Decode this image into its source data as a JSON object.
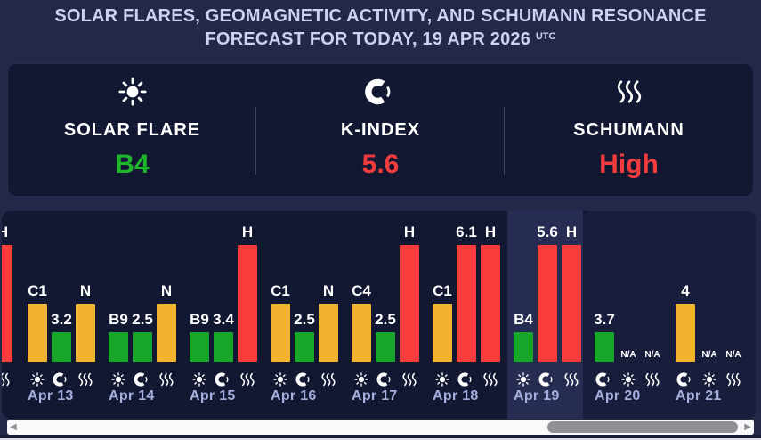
{
  "title": {
    "line1": "SOLAR FLARES, GEOMAGNETIC ACTIVITY, AND SCHUMANN RESONANCE",
    "line2": "FORECAST FOR TODAY, 19 APR 2026",
    "superscript": "UTC"
  },
  "summary": {
    "cards": [
      {
        "icon": "sun-icon",
        "label": "SOLAR FLARE",
        "value": "B4",
        "value_color": "#1fb62c"
      },
      {
        "icon": "moon-icon",
        "label": "K-INDEX",
        "value": "5.6",
        "value_color": "#f23c3c"
      },
      {
        "icon": "waves-icon",
        "label": "SCHUMANN",
        "value": "High",
        "value_color": "#f23c3c"
      }
    ]
  },
  "chart_data": {
    "type": "bar",
    "title": "Solar flares, geomagnetic activity and Schumann resonance daily forecast",
    "categories": [
      "Apr 13",
      "Apr 14",
      "Apr 15",
      "Apr 16",
      "Apr 17",
      "Apr 18",
      "Apr 19",
      "Apr 20",
      "Apr 21"
    ],
    "series": [
      {
        "name": "Solar flare",
        "values": [
          "C1",
          "B9",
          "B9",
          "C1",
          "C4",
          "C1",
          "B4",
          "N/A",
          "N/A"
        ],
        "severity": [
          "moderate",
          "low",
          "low",
          "moderate",
          "moderate",
          "moderate",
          "low",
          null,
          null
        ]
      },
      {
        "name": "K-index",
        "values": [
          3.2,
          2.5,
          3.4,
          2.5,
          2.5,
          6.1,
          5.6,
          3.7,
          4
        ],
        "severity": [
          "low",
          "low",
          "low",
          "low",
          "low",
          "high",
          "high",
          "low",
          "moderate"
        ]
      },
      {
        "name": "Schumann",
        "values": [
          "N",
          "N",
          "H",
          "N",
          "H",
          "H",
          "H",
          "N/A",
          "N/A"
        ],
        "severity": [
          "moderate",
          "moderate",
          "high",
          "moderate",
          "high",
          "high",
          "high",
          null,
          null
        ]
      }
    ],
    "today": "Apr 19",
    "grid": false,
    "legend_position": "none",
    "bar_height_encoding": {
      "low": 33,
      "moderate": 65,
      "high": 131
    },
    "colors": {
      "low": "#17a62a",
      "moderate": "#f2b42e",
      "high": "#f73c3b"
    },
    "na_label": "N/A",
    "metric_icons": {
      "solar-flare": "sun-icon",
      "k-index": "moon-icon",
      "schumann": "waves-icon"
    },
    "partial_day_left": {
      "note_visible_pixels_only": "clipped previous day at left edge",
      "bars": [
        {
          "metric": "schumann",
          "label": "H",
          "severity": "high"
        }
      ]
    },
    "days": [
      {
        "date": "Apr 13",
        "today": false,
        "bars": [
          {
            "metric": "solar-flare",
            "label": "C1",
            "severity": "moderate"
          },
          {
            "metric": "k-index",
            "label": "3.2",
            "severity": "low"
          },
          {
            "metric": "schumann",
            "label": "N",
            "severity": "moderate"
          }
        ]
      },
      {
        "date": "Apr 14",
        "today": false,
        "bars": [
          {
            "metric": "solar-flare",
            "label": "B9",
            "severity": "low"
          },
          {
            "metric": "k-index",
            "label": "2.5",
            "severity": "low"
          },
          {
            "metric": "schumann",
            "label": "N",
            "severity": "moderate"
          }
        ]
      },
      {
        "date": "Apr 15",
        "today": false,
        "bars": [
          {
            "metric": "solar-flare",
            "label": "B9",
            "severity": "low"
          },
          {
            "metric": "k-index",
            "label": "3.4",
            "severity": "low"
          },
          {
            "metric": "schumann",
            "label": "H",
            "severity": "high"
          }
        ]
      },
      {
        "date": "Apr 16",
        "today": false,
        "bars": [
          {
            "metric": "solar-flare",
            "label": "C1",
            "severity": "moderate"
          },
          {
            "metric": "k-index",
            "label": "2.5",
            "severity": "low"
          },
          {
            "metric": "schumann",
            "label": "N",
            "severity": "moderate"
          }
        ]
      },
      {
        "date": "Apr 17",
        "today": false,
        "bars": [
          {
            "metric": "solar-flare",
            "label": "C4",
            "severity": "moderate"
          },
          {
            "metric": "k-index",
            "label": "2.5",
            "severity": "low"
          },
          {
            "metric": "schumann",
            "label": "H",
            "severity": "high"
          }
        ]
      },
      {
        "date": "Apr 18",
        "today": false,
        "bars": [
          {
            "metric": "solar-flare",
            "label": "C1",
            "severity": "moderate"
          },
          {
            "metric": "k-index",
            "label": "6.1",
            "severity": "high"
          },
          {
            "metric": "schumann",
            "label": "H",
            "severity": "high"
          }
        ]
      },
      {
        "date": "Apr 19",
        "today": true,
        "bars": [
          {
            "metric": "solar-flare",
            "label": "B4",
            "severity": "low"
          },
          {
            "metric": "k-index",
            "label": "5.6",
            "severity": "high"
          },
          {
            "metric": "schumann",
            "label": "H",
            "severity": "high"
          }
        ]
      },
      {
        "date": "Apr 20",
        "today": false,
        "bars": [
          {
            "metric": "k-index",
            "label": "3.7",
            "severity": "low"
          },
          {
            "metric": "solar-flare",
            "label": "N/A",
            "severity": null
          },
          {
            "metric": "schumann",
            "label": "N/A",
            "severity": null
          }
        ]
      },
      {
        "date": "Apr 21",
        "today": false,
        "bars": [
          {
            "metric": "k-index",
            "label": "4",
            "severity": "moderate"
          },
          {
            "metric": "solar-flare",
            "label": "N/A",
            "severity": null
          },
          {
            "metric": "schumann",
            "label": "N/A",
            "severity": null
          }
        ]
      }
    ]
  },
  "scrollbar": {
    "left_arrow_icon": "scroll-left-arrow-icon",
    "right_arrow_icon": "scroll-right-arrow-icon",
    "thumb_left_pct": 72.3,
    "thumb_width_pct": 25.6
  }
}
